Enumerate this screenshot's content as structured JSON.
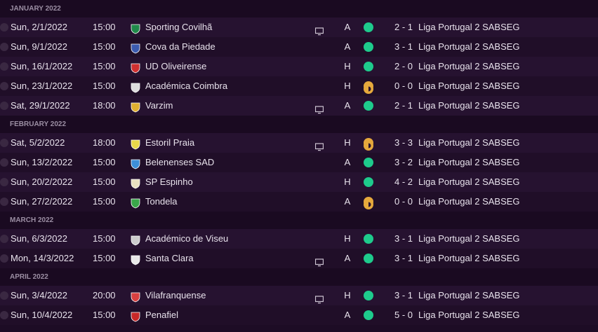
{
  "colors": {
    "win": "#1ecb8c",
    "draw": "#e6a93c"
  },
  "months": [
    {
      "label": "JANUARY 2022",
      "matches": [
        {
          "date": "Sun, 2/1/2022",
          "time": "15:00",
          "opponent": "Sporting Covilhã",
          "badge": "#1f8a4a",
          "tv": true,
          "venue": "A",
          "result": "win",
          "score": "2 - 1",
          "competition": "Liga Portugal 2 SABSEG"
        },
        {
          "date": "Sun, 9/1/2022",
          "time": "15:00",
          "opponent": "Cova da Piedade",
          "badge": "#3b5bb0",
          "tv": false,
          "venue": "A",
          "result": "win",
          "score": "3 - 1",
          "competition": "Liga Portugal 2 SABSEG"
        },
        {
          "date": "Sun, 16/1/2022",
          "time": "15:00",
          "opponent": "UD Oliveirense",
          "badge": "#d03030",
          "tv": false,
          "venue": "H",
          "result": "win",
          "score": "2 - 0",
          "competition": "Liga Portugal 2 SABSEG"
        },
        {
          "date": "Sun, 23/1/2022",
          "time": "15:00",
          "opponent": "Académica Coimbra",
          "badge": "#dddddd",
          "tv": false,
          "venue": "H",
          "result": "draw",
          "score": "0 - 0",
          "competition": "Liga Portugal 2 SABSEG"
        },
        {
          "date": "Sat, 29/1/2022",
          "time": "18:00",
          "opponent": "Varzim",
          "badge": "#e0b030",
          "tv": true,
          "venue": "A",
          "result": "win",
          "score": "2 - 1",
          "competition": "Liga Portugal 2 SABSEG"
        }
      ]
    },
    {
      "label": "FEBRUARY 2022",
      "matches": [
        {
          "date": "Sat, 5/2/2022",
          "time": "18:00",
          "opponent": "Estoril Praia",
          "badge": "#e8d84a",
          "tv": true,
          "venue": "H",
          "result": "draw",
          "score": "3 - 3",
          "competition": "Liga Portugal 2 SABSEG"
        },
        {
          "date": "Sun, 13/2/2022",
          "time": "15:00",
          "opponent": "Belenenses SAD",
          "badge": "#3d8ed8",
          "tv": false,
          "venue": "A",
          "result": "win",
          "score": "3 - 2",
          "competition": "Liga Portugal 2 SABSEG"
        },
        {
          "date": "Sun, 20/2/2022",
          "time": "15:00",
          "opponent": "SP Espinho",
          "badge": "#e8e0c0",
          "tv": false,
          "venue": "H",
          "result": "win",
          "score": "4 - 2",
          "competition": "Liga Portugal 2 SABSEG"
        },
        {
          "date": "Sun, 27/2/2022",
          "time": "15:00",
          "opponent": "Tondela",
          "badge": "#3aa84a",
          "tv": false,
          "venue": "A",
          "result": "draw",
          "score": "0 - 0",
          "competition": "Liga Portugal 2 SABSEG"
        }
      ]
    },
    {
      "label": "MARCH 2022",
      "matches": [
        {
          "date": "Sun, 6/3/2022",
          "time": "15:00",
          "opponent": "Académico de Viseu",
          "badge": "#cccccc",
          "tv": false,
          "venue": "H",
          "result": "win",
          "score": "3 - 1",
          "competition": "Liga Portugal 2 SABSEG"
        },
        {
          "date": "Mon, 14/3/2022",
          "time": "15:00",
          "opponent": "Santa Clara",
          "badge": "#e8e8e8",
          "tv": true,
          "venue": "A",
          "result": "win",
          "score": "3 - 1",
          "competition": "Liga Portugal 2 SABSEG"
        }
      ]
    },
    {
      "label": "APRIL 2022",
      "matches": [
        {
          "date": "Sun, 3/4/2022",
          "time": "20:00",
          "opponent": "Vilafranquense",
          "badge": "#d84040",
          "tv": true,
          "venue": "H",
          "result": "win",
          "score": "3 - 1",
          "competition": "Liga Portugal 2 SABSEG"
        },
        {
          "date": "Sun, 10/4/2022",
          "time": "15:00",
          "opponent": "Penafiel",
          "badge": "#c82828",
          "tv": false,
          "venue": "A",
          "result": "win",
          "score": "5 - 0",
          "competition": "Liga Portugal 2 SABSEG"
        }
      ]
    }
  ]
}
